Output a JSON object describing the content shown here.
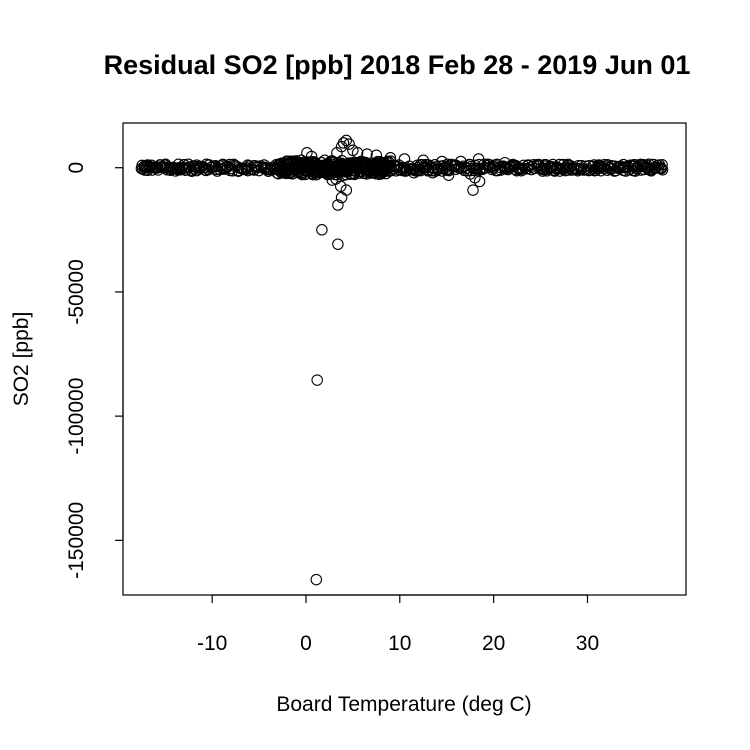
{
  "chart_data": {
    "type": "scatter",
    "title": "Residual SO2 [ppb] 2018 Feb 28 - 2019 Jun 01",
    "xlabel": "Board Temperature (deg C)",
    "ylabel": "SO2 [ppb]",
    "xlim": [
      -19.5,
      40.5
    ],
    "ylim": [
      -172000,
      18000
    ],
    "xticks": [
      -10,
      0,
      10,
      20,
      30
    ],
    "xtick_labels": [
      "-10",
      "0",
      "10",
      "20",
      "30"
    ],
    "yticks": [
      0,
      -50000,
      -100000,
      -150000
    ],
    "ytick_labels": [
      "0",
      "-50000",
      "-100000",
      "-150000"
    ],
    "grid": false,
    "legend": "none",
    "band": {
      "x_start": -17.5,
      "x_end": 38.0,
      "y_center": 0
    },
    "points": [
      {
        "x": 1.1,
        "y": -165800
      },
      {
        "x": 1.2,
        "y": -85500
      },
      {
        "x": 3.4,
        "y": -30800
      },
      {
        "x": 1.7,
        "y": -25000
      },
      {
        "x": 3.4,
        "y": -15000
      },
      {
        "x": 3.8,
        "y": -12000
      },
      {
        "x": 3.7,
        "y": -7500
      },
      {
        "x": 4.3,
        "y": -9000
      },
      {
        "x": 3.2,
        "y": -4500
      },
      {
        "x": 2.8,
        "y": -5000
      },
      {
        "x": 4.0,
        "y": -3000
      },
      {
        "x": 17.8,
        "y": -9000
      },
      {
        "x": 18.5,
        "y": -5500
      },
      {
        "x": 18.0,
        "y": -4000
      },
      {
        "x": 17.5,
        "y": -2500
      },
      {
        "x": 4.0,
        "y": 10000
      },
      {
        "x": 4.3,
        "y": 11000
      },
      {
        "x": 4.6,
        "y": 9500
      },
      {
        "x": 3.8,
        "y": 8500
      },
      {
        "x": 5.0,
        "y": 7000
      },
      {
        "x": 5.5,
        "y": 6000
      },
      {
        "x": 3.3,
        "y": 6000
      },
      {
        "x": 0.1,
        "y": 6000
      },
      {
        "x": 0.6,
        "y": 4500
      },
      {
        "x": 6.5,
        "y": 5500
      },
      {
        "x": 7.5,
        "y": 5000
      },
      {
        "x": 9.0,
        "y": 4000
      },
      {
        "x": 10.5,
        "y": 3500
      },
      {
        "x": 12.5,
        "y": 3000
      },
      {
        "x": 14.5,
        "y": 2500
      },
      {
        "x": 16.5,
        "y": 2500
      },
      {
        "x": 18.4,
        "y": 3500
      },
      {
        "x": 21.2,
        "y": 2000
      },
      {
        "x": -1.5,
        "y": 2500
      },
      {
        "x": -0.5,
        "y": 3000
      },
      {
        "x": 2.0,
        "y": 3000
      },
      {
        "x": 8.0,
        "y": -2500
      },
      {
        "x": 11.5,
        "y": -2000
      },
      {
        "x": 13.5,
        "y": -2000
      },
      {
        "x": 15.2,
        "y": -3000
      },
      {
        "x": 1.0,
        "y": -2000
      },
      {
        "x": -17.2,
        "y": 0
      },
      {
        "x": -16.6,
        "y": 0
      },
      {
        "x": -15.8,
        "y": 0
      },
      {
        "x": -15.0,
        "y": 0
      },
      {
        "x": -14.3,
        "y": 0
      },
      {
        "x": -13.5,
        "y": 0
      },
      {
        "x": -12.8,
        "y": 0
      },
      {
        "x": 36.5,
        "y": 0
      },
      {
        "x": 37.2,
        "y": 0
      },
      {
        "x": 37.8,
        "y": 0
      }
    ]
  }
}
